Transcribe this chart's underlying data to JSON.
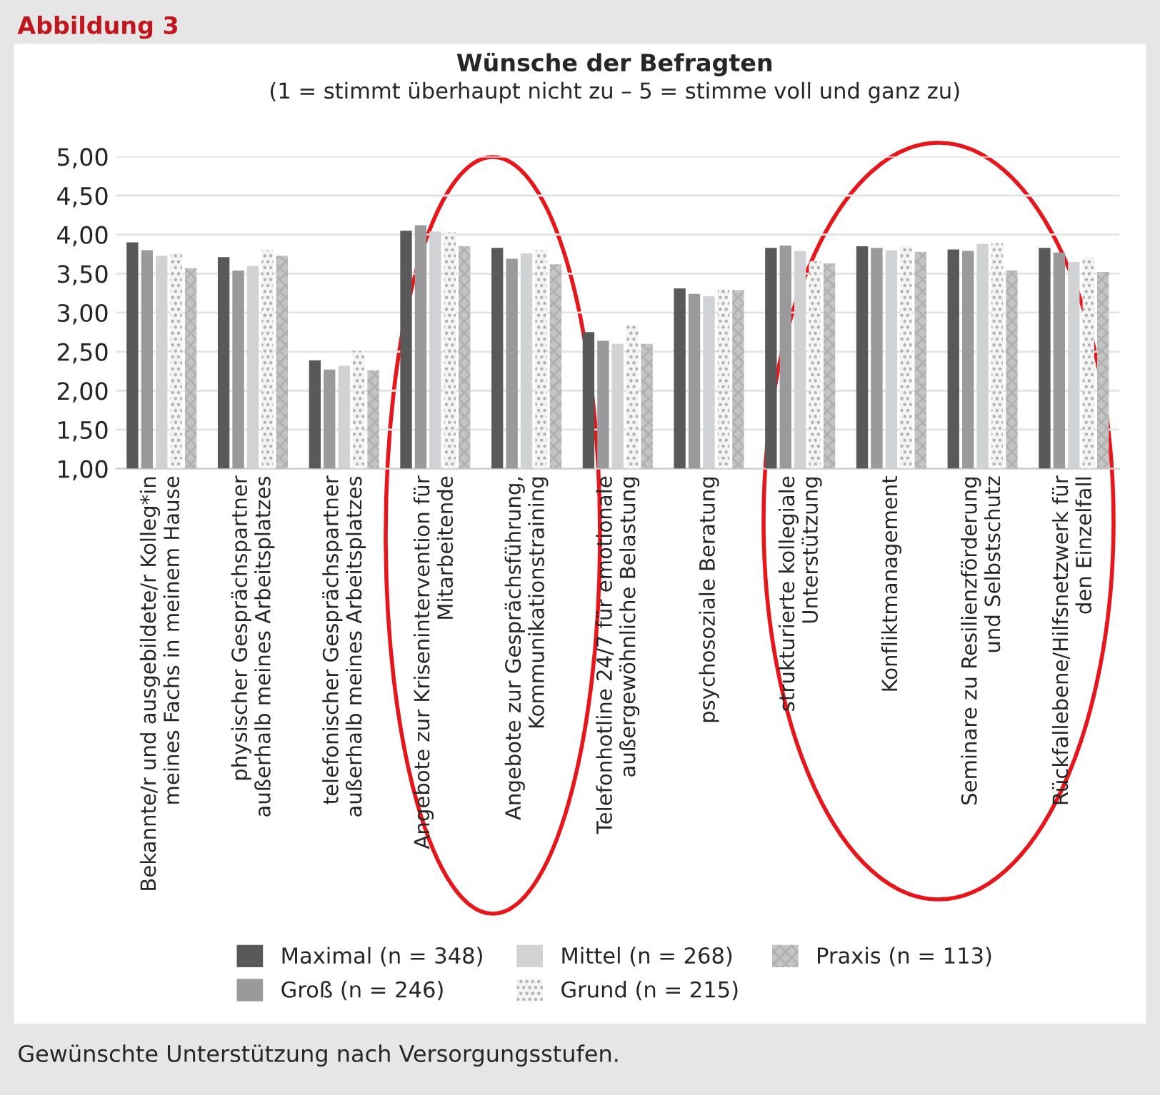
{
  "chart_data": {
    "type": "bar",
    "title": "Wünsche der Befragten",
    "subtitle": "(1 = stimmt überhaupt nicht zu – 5 = stimme voll und ganz zu)",
    "categories": [
      "Bekannte/r und ausgebildete/r Kolleg*in\nmeines Fachs in meinem Hause",
      "physischer Gesprächspartner\naußerhalb meines Arbeitsplatzes",
      "telefonischer Gesprächspartner\naußerhalb meines Arbeitsplatzes",
      "Angebote zur Krisenintervention für\nMitarbeitende",
      "Angebote zur Gesprächsführung,\nKommunikationstraining",
      "Telefonhotline 24/7 für emotionale\naußergewöhnliche Belastung",
      "psychosoziale Beratung",
      "strukturierte kollegiale\nUnterstützung",
      "Konfliktmanagement",
      "Seminare zu Resilienzförderung\nund Selbstschutz",
      "Rückfallebene/Hilfsnetzwerk für\nden Einzelfall"
    ],
    "series": [
      {
        "name": "Maximal (n = 348)",
        "color": "#595959",
        "values": [
          3.9,
          3.71,
          2.39,
          4.05,
          3.83,
          2.75,
          3.31,
          3.83,
          3.85,
          3.81,
          3.83
        ]
      },
      {
        "name": "Groß (n = 246)",
        "color": "#9a9a9c",
        "values": [
          3.8,
          3.54,
          2.27,
          4.12,
          3.69,
          2.64,
          3.24,
          3.86,
          3.83,
          3.79,
          3.77
        ]
      },
      {
        "name": "Mittel (n = 268)",
        "color": "#d0d2d3",
        "values": [
          3.73,
          3.6,
          2.32,
          4.04,
          3.76,
          2.6,
          3.21,
          3.79,
          3.8,
          3.88,
          3.65
        ]
      },
      {
        "name": "Grund (n = 215)",
        "color": "#f4f4f4",
        "values": [
          3.76,
          3.8,
          2.51,
          4.03,
          3.8,
          2.84,
          3.3,
          3.66,
          3.86,
          3.89,
          3.71
        ]
      },
      {
        "name": "Praxis (n = 113)",
        "color": "#c4c4c4",
        "values": [
          3.57,
          3.73,
          2.26,
          3.85,
          3.62,
          2.6,
          3.29,
          3.63,
          3.78,
          3.54,
          3.52
        ]
      }
    ],
    "ylim": [
      1,
      5
    ],
    "yticks": [
      {
        "value": 1,
        "label": "1,00"
      },
      {
        "value": 1.5,
        "label": "1,50"
      },
      {
        "value": 2,
        "label": "2,00"
      },
      {
        "value": 2.5,
        "label": "2,50"
      },
      {
        "value": 3,
        "label": "3,00"
      },
      {
        "value": 3.5,
        "label": "3,50"
      },
      {
        "value": 4,
        "label": "4,00"
      },
      {
        "value": 4.5,
        "label": "4,50"
      },
      {
        "value": 5,
        "label": "5,00"
      }
    ],
    "grid": "y",
    "legend": "bottom",
    "annotations": [
      "Abbildung 3",
      "Gewünschte Unterstützung nach Versorgungsstufen."
    ]
  }
}
